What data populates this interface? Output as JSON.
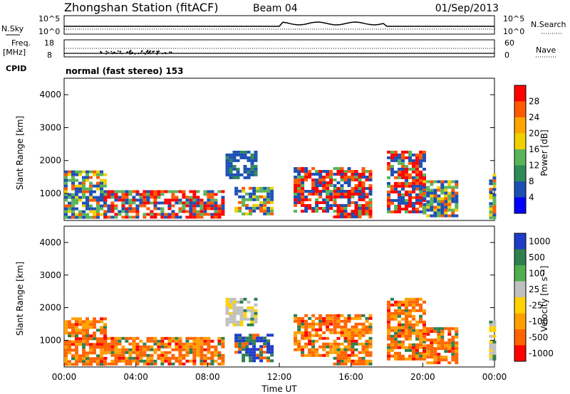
{
  "header": {
    "station": "Zhongshan Station (fitACF)",
    "beam": "Beam 04",
    "date": "01/Sep/2013"
  },
  "noise_panel": {
    "left_label": "N.Sky",
    "right_label": "N.Search",
    "left_ticks": [
      "10^5",
      "10^0"
    ],
    "right_ticks": [
      "10^5",
      "10^0"
    ]
  },
  "freq_panel": {
    "left_label_1": "Freq.",
    "left_label_2": "[MHz]",
    "left_ticks": [
      "18",
      "8"
    ],
    "right_label": "Nave",
    "right_ticks": [
      "60",
      "0"
    ]
  },
  "cpid_panel": {
    "label": "CPID",
    "text": "normal (fast stereo) 153"
  },
  "power_colorbar": {
    "title": "Power [dB]",
    "ticks": [
      "28",
      "24",
      "20",
      "16",
      "12",
      "8",
      "4"
    ],
    "colors": [
      "#ff0000",
      "#ff5a00",
      "#ffa500",
      "#f0d000",
      "#5ab55a",
      "#2e8b57",
      "#1e50b4",
      "#0000ff"
    ]
  },
  "velocity_colorbar": {
    "title": "Velocity [m s⁻¹]",
    "ticks": [
      "1000",
      "500",
      "100",
      "25",
      "-25",
      "-100",
      "-500",
      "-1000"
    ],
    "colors": [
      "#1e3cc8",
      "#2f7f4f",
      "#4fae4f",
      "#c0c0c0",
      "#ffd200",
      "#ffa000",
      "#ff6400",
      "#ff0000"
    ]
  },
  "chart_data": [
    {
      "type": "heatmap",
      "title": "Power",
      "ylabel": "Slant Range [km]",
      "xlabel": "Time UT",
      "xlim": [
        "00:00",
        "24:00"
      ],
      "ylim": [
        180,
        4500
      ],
      "yticks": [
        "1000",
        "2000",
        "3000",
        "4000"
      ],
      "regions": [
        {
          "t0": 0.0,
          "t1": 2.2,
          "r0": 300,
          "r1": 1700,
          "level": "mid"
        },
        {
          "t0": 2.2,
          "t1": 8.8,
          "r0": 300,
          "r1": 1100,
          "level": "high"
        },
        {
          "t0": 9.0,
          "t1": 10.6,
          "r0": 1500,
          "r1": 2300,
          "level": "low"
        },
        {
          "t0": 9.5,
          "t1": 11.5,
          "r0": 400,
          "r1": 1200,
          "level": "mid"
        },
        {
          "t0": 12.8,
          "t1": 14.8,
          "r0": 500,
          "r1": 1800,
          "level": "high"
        },
        {
          "t0": 15.0,
          "t1": 17.0,
          "r0": 300,
          "r1": 1800,
          "level": "high"
        },
        {
          "t0": 18.0,
          "t1": 20.0,
          "r0": 400,
          "r1": 2300,
          "level": "high"
        },
        {
          "t0": 20.0,
          "t1": 21.8,
          "r0": 300,
          "r1": 1400,
          "level": "mid"
        },
        {
          "t0": 23.7,
          "t1": 24.0,
          "r0": 300,
          "r1": 1600,
          "level": "mid"
        }
      ]
    },
    {
      "type": "heatmap",
      "title": "Velocity",
      "ylabel": "Slant Range [km]",
      "xlabel": "Time UT",
      "xlim": [
        "00:00",
        "24:00"
      ],
      "ylim": [
        180,
        4500
      ],
      "yticks": [
        "1000",
        "2000",
        "3000",
        "4000"
      ],
      "xticks": [
        "00:00",
        "04:00",
        "08:00",
        "12:00",
        "16:00",
        "20:00",
        "00:00"
      ],
      "regions": [
        {
          "t0": 0.0,
          "t1": 2.2,
          "r0": 300,
          "r1": 1700,
          "level": "neg"
        },
        {
          "t0": 2.2,
          "t1": 8.8,
          "r0": 300,
          "r1": 1100,
          "level": "neg"
        },
        {
          "t0": 9.0,
          "t1": 10.6,
          "r0": 1500,
          "r1": 2300,
          "level": "zero"
        },
        {
          "t0": 9.5,
          "t1": 11.5,
          "r0": 400,
          "r1": 1200,
          "level": "pos"
        },
        {
          "t0": 12.8,
          "t1": 14.8,
          "r0": 500,
          "r1": 1800,
          "level": "neg"
        },
        {
          "t0": 15.0,
          "t1": 17.0,
          "r0": 300,
          "r1": 1800,
          "level": "neg"
        },
        {
          "t0": 18.0,
          "t1": 20.0,
          "r0": 400,
          "r1": 2300,
          "level": "neg"
        },
        {
          "t0": 20.0,
          "t1": 21.8,
          "r0": 300,
          "r1": 1400,
          "level": "neg"
        },
        {
          "t0": 23.7,
          "t1": 24.0,
          "r0": 300,
          "r1": 1600,
          "level": "zero"
        }
      ]
    }
  ]
}
